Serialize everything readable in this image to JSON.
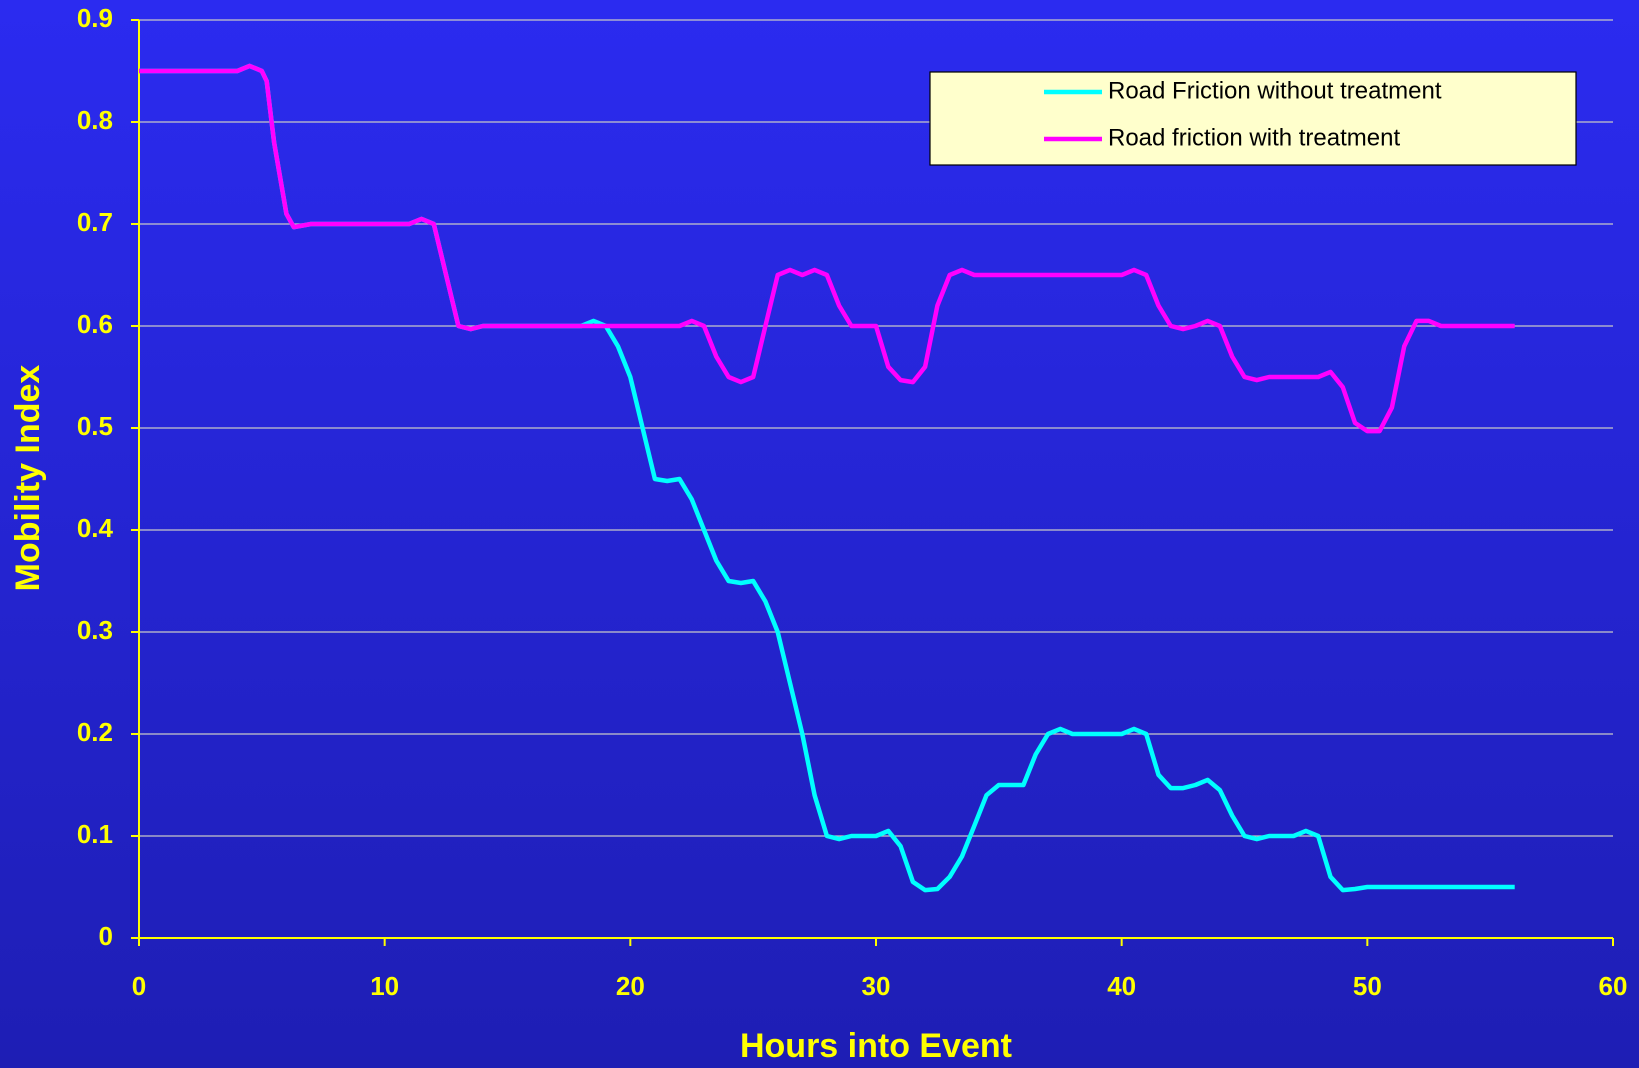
{
  "chart_data": {
    "type": "line",
    "x_label": "Hours into Event",
    "y_label": "Mobility Index",
    "xlim": [
      0,
      60
    ],
    "xticks": [
      0,
      10,
      20,
      30,
      40,
      50,
      60
    ],
    "ylim": [
      0,
      0.9
    ],
    "yticks": [
      {
        "value": 0,
        "label": "0"
      },
      {
        "value": 0.1,
        "label": "0.1"
      },
      {
        "value": 0.2,
        "label": "0.2"
      },
      {
        "value": 0.3,
        "label": "0.3"
      },
      {
        "value": 0.4,
        "label": "0.4"
      },
      {
        "value": 0.5,
        "label": "0.5"
      },
      {
        "value": 0.6,
        "label": "0.6"
      },
      {
        "value": 0.7,
        "label": "0.7"
      },
      {
        "value": 0.8,
        "label": "0.8"
      },
      {
        "value": 0.9,
        "label": "0.9"
      }
    ],
    "grid": true,
    "legend": "upper right",
    "series": [
      {
        "name": "Road Friction without treatment",
        "color": "#00ffff",
        "x": [
          0,
          4,
          4.5,
          5,
          5.2,
          5.5,
          6,
          6.3,
          7,
          11,
          11.5,
          12,
          12.5,
          13,
          13.5,
          14,
          18,
          18.5,
          19,
          19.5,
          20,
          20.5,
          21,
          21.5,
          22,
          22.5,
          23,
          23.5,
          24,
          24.5,
          25,
          25.5,
          26,
          26.5,
          27,
          27.5,
          28,
          28.5,
          29,
          30,
          30.5,
          31,
          31.5,
          32,
          32.5,
          33,
          33.5,
          34,
          34.5,
          35,
          35.5,
          36,
          36.5,
          37,
          37.5,
          38,
          40,
          40.5,
          41,
          41.5,
          42,
          42.5,
          43,
          43.5,
          44,
          44.5,
          45,
          45.5,
          46,
          47,
          47.5,
          48,
          48.5,
          49,
          49.5,
          50,
          56
        ],
        "values": [
          0.85,
          0.85,
          0.855,
          0.85,
          0.84,
          0.78,
          0.71,
          0.697,
          0.7,
          0.7,
          0.705,
          0.7,
          0.65,
          0.6,
          0.597,
          0.6,
          0.6,
          0.605,
          0.6,
          0.58,
          0.55,
          0.5,
          0.45,
          0.448,
          0.45,
          0.43,
          0.4,
          0.37,
          0.35,
          0.348,
          0.35,
          0.33,
          0.3,
          0.25,
          0.2,
          0.14,
          0.1,
          0.097,
          0.1,
          0.1,
          0.105,
          0.09,
          0.055,
          0.047,
          0.048,
          0.06,
          0.08,
          0.11,
          0.14,
          0.15,
          0.15,
          0.15,
          0.18,
          0.2,
          0.205,
          0.2,
          0.2,
          0.205,
          0.2,
          0.16,
          0.147,
          0.147,
          0.15,
          0.155,
          0.145,
          0.12,
          0.1,
          0.097,
          0.1,
          0.1,
          0.105,
          0.1,
          0.06,
          0.047,
          0.048,
          0.05,
          0.05
        ]
      },
      {
        "name": "Road friction with treatment",
        "color": "#ff00ff",
        "x": [
          0,
          4,
          4.5,
          5,
          5.2,
          5.5,
          6,
          6.3,
          7,
          11,
          11.5,
          12,
          12.5,
          13,
          13.5,
          14,
          22,
          22.5,
          23,
          23.5,
          24,
          24.5,
          25,
          25.5,
          26,
          26.5,
          27,
          27.5,
          28,
          28.5,
          29,
          29.5,
          30,
          30.5,
          31,
          31.5,
          32,
          32.5,
          33,
          33.5,
          34,
          40,
          40.5,
          41,
          41.5,
          42,
          42.5,
          43,
          43.5,
          44,
          44.5,
          45,
          45.5,
          46,
          48,
          48.5,
          49,
          49.5,
          50,
          50.5,
          51,
          51.5,
          52,
          52.5,
          53,
          56
        ],
        "values": [
          0.85,
          0.85,
          0.855,
          0.85,
          0.84,
          0.78,
          0.71,
          0.697,
          0.7,
          0.7,
          0.705,
          0.7,
          0.65,
          0.6,
          0.597,
          0.6,
          0.6,
          0.605,
          0.6,
          0.57,
          0.55,
          0.545,
          0.55,
          0.6,
          0.65,
          0.655,
          0.65,
          0.655,
          0.65,
          0.62,
          0.6,
          0.6,
          0.6,
          0.56,
          0.547,
          0.545,
          0.56,
          0.62,
          0.65,
          0.655,
          0.65,
          0.65,
          0.655,
          0.65,
          0.62,
          0.6,
          0.597,
          0.6,
          0.605,
          0.6,
          0.57,
          0.55,
          0.547,
          0.55,
          0.55,
          0.555,
          0.54,
          0.505,
          0.497,
          0.497,
          0.52,
          0.58,
          0.605,
          0.605,
          0.6,
          0.6
        ]
      }
    ]
  }
}
